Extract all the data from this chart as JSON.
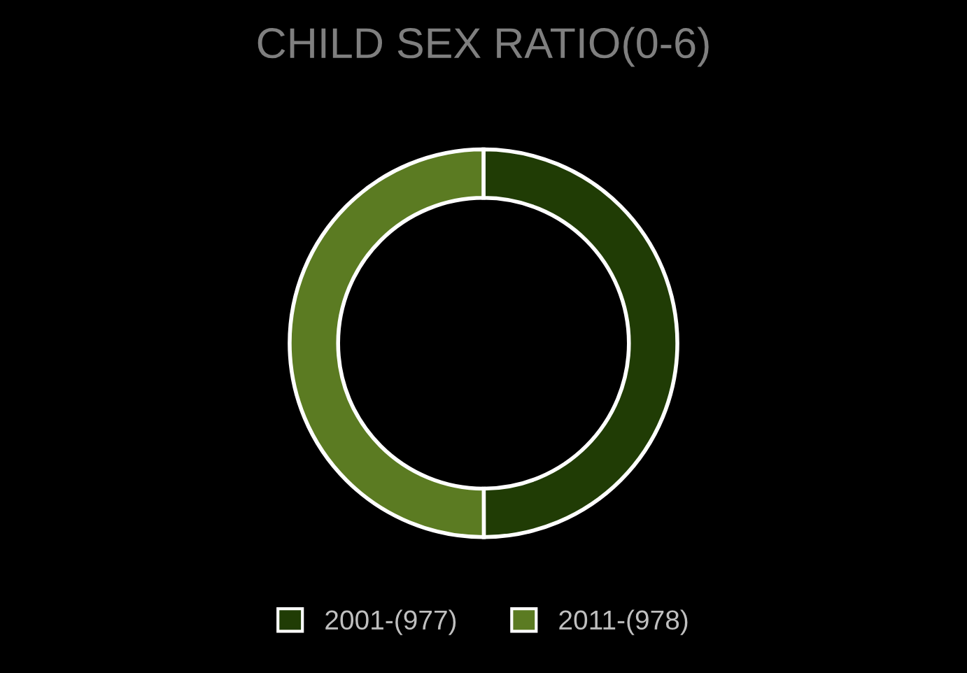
{
  "chart_data": {
    "type": "donut",
    "title": "CHILD SEX RATIO(0-6)",
    "categories": [
      "2001-(977)",
      "2011-(978)"
    ],
    "values": [
      977,
      978
    ],
    "colors": [
      "#203c05",
      "#5b7b22"
    ],
    "legend": "bottom"
  }
}
